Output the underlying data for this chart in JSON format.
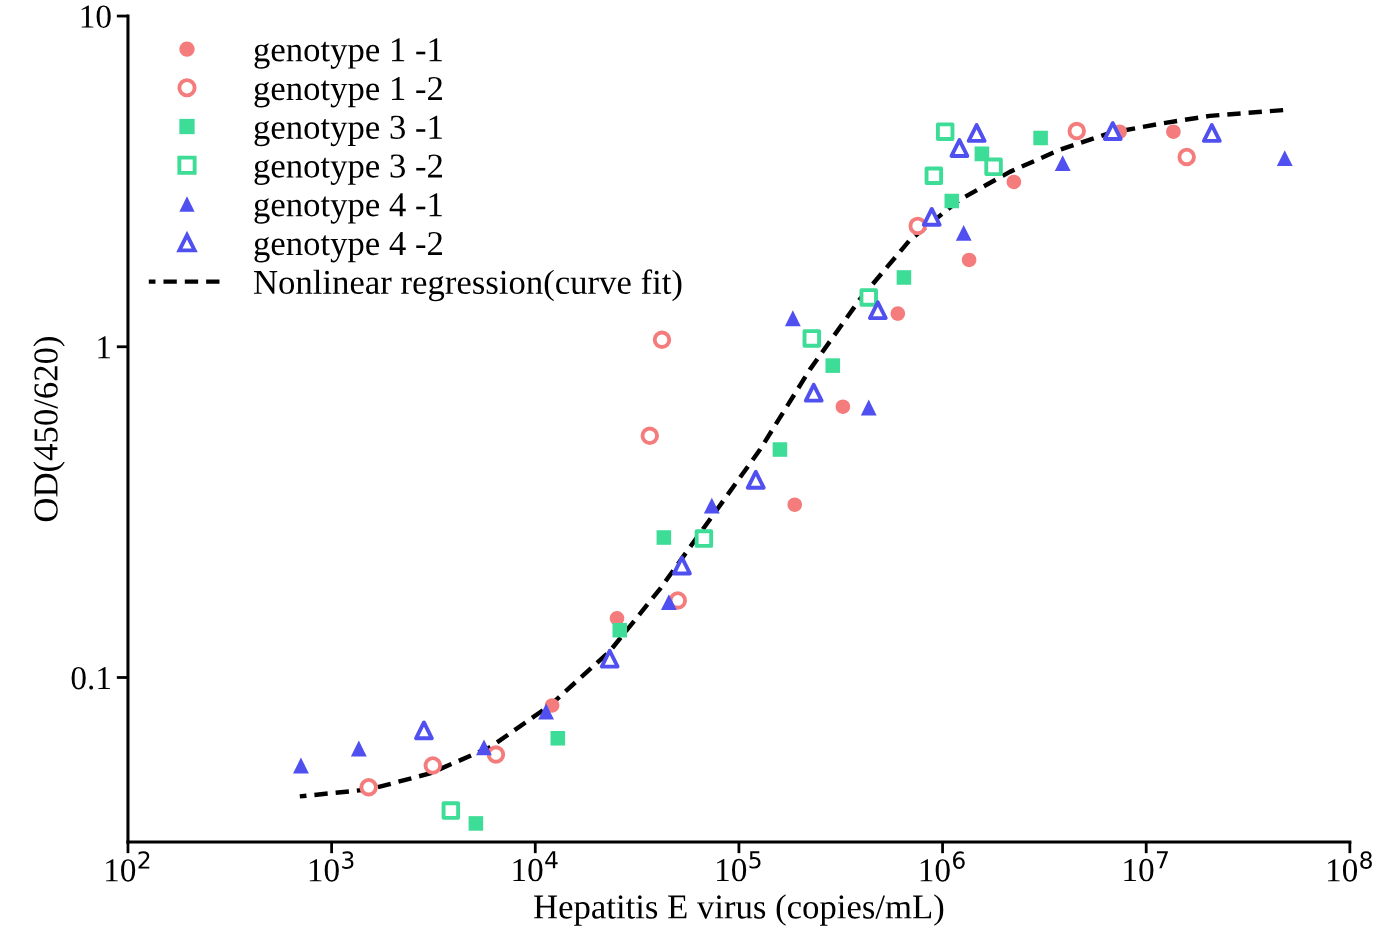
{
  "chart_data": {
    "type": "scatter",
    "xlabel": "Hepatitis E virus (copies/mL)",
    "ylabel": "OD(450/620)",
    "log": "xy",
    "grid": false,
    "legend": "top left",
    "xlim": [
      100,
      100000000
    ],
    "ylim": [
      0.0318,
      10
    ],
    "xticks": [
      {
        "value": 100,
        "label": "10$^{2}$"
      },
      {
        "value": 1000,
        "label": "10$^{3}$"
      },
      {
        "value": 10000,
        "label": "10$^{4}$"
      },
      {
        "value": 100000,
        "label": "10$^{5}$"
      },
      {
        "value": 1000000,
        "label": "10$^{6}$"
      },
      {
        "value": 10000000,
        "label": "10$^{7}$"
      },
      {
        "value": 100000000,
        "label": "10$^{8}$"
      }
    ],
    "yticks": [
      0.1,
      1,
      10
    ],
    "series": [
      {
        "name": "genotype 1 -1",
        "color": "#f47c7c",
        "marker": "circle",
        "x": [
          12100,
          25200,
          188000,
          324000,
          603000,
          1350000,
          2240000,
          7410000,
          13600000
        ],
        "values": [
          0.0823,
          0.151,
          0.333,
          0.659,
          1.26,
          1.83,
          3.15,
          4.47,
          4.47
        ]
      },
      {
        "name": "genotype 1 -2",
        "color": "#f47c7c",
        "marker": "circle",
        "x": [
          1520,
          3140,
          6410,
          36500,
          41900,
          50100,
          755000,
          4560000,
          15800000
        ],
        "values": [
          0.0466,
          0.0542,
          0.0585,
          0.538,
          1.05,
          0.171,
          2.32,
          4.49,
          3.75
        ]
      },
      {
        "name": "genotype 3 -1",
        "color": "#3ddc97",
        "marker": "square",
        "x": [
          5110,
          12900,
          26000,
          42800,
          159000,
          289000,
          646000,
          1110000,
          1560000,
          3030000
        ],
        "values": [
          0.0362,
          0.0655,
          0.139,
          0.265,
          0.489,
          0.877,
          1.62,
          2.76,
          3.83,
          4.28
        ]
      },
      {
        "name": "genotype 3 -2",
        "color": "#3ddc97",
        "marker": "square",
        "x": [
          3850,
          67300,
          228000,
          434000,
          906000,
          1030000,
          1780000
        ],
        "values": [
          0.0396,
          0.263,
          1.06,
          1.41,
          3.29,
          4.47,
          3.5
        ]
      },
      {
        "name": "genotype 4 -1",
        "color": "#5050f0",
        "marker": "triangle",
        "x": [
          707,
          1360,
          5600,
          11300,
          45300,
          73600,
          184000,
          434000,
          1270000,
          3890000,
          47900000
        ],
        "values": [
          0.0542,
          0.061,
          0.0615,
          0.0789,
          0.169,
          0.331,
          1.22,
          0.655,
          2.21,
          3.59,
          3.72
        ]
      },
      {
        "name": "genotype 4 -2",
        "color": "#5050f0",
        "marker": "triangle",
        "x": [
          2840,
          23200,
          52500,
          121000,
          233000,
          481000,
          885000,
          1210000,
          1470000,
          6850000,
          21000000
        ],
        "values": [
          0.0692,
          0.114,
          0.218,
          0.396,
          0.726,
          1.29,
          2.47,
          3.99,
          4.43,
          4.49,
          4.43
        ]
      },
      {
        "name": "Nonlinear regression(curve fit)",
        "type": "line",
        "color": "#000000",
        "marker": "none",
        "line_style": "dashed",
        "x": [
          698,
          1540,
          3040,
          5990,
          11800,
          23200,
          40900,
          71900,
          127000,
          223000,
          392000,
          690000,
          1210000,
          2140000,
          3760000,
          6620000,
          11600000,
          20500000,
          47900000
        ],
        "values": [
          0.0437,
          0.0459,
          0.0513,
          0.0615,
          0.0823,
          0.12,
          0.185,
          0.3,
          0.489,
          0.853,
          1.39,
          2.1,
          2.78,
          3.38,
          3.94,
          4.43,
          4.72,
          4.99,
          5.2
        ]
      }
    ]
  }
}
